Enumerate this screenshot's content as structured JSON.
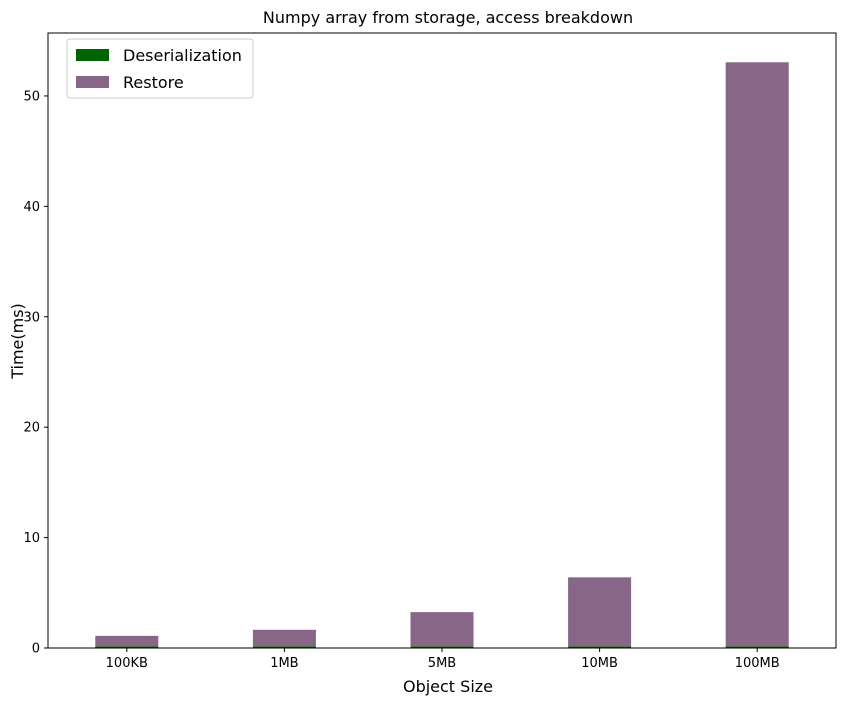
{
  "chart_data": {
    "type": "bar",
    "stacked": true,
    "title": "Numpy array from storage, access breakdown",
    "xlabel": "Object Size",
    "ylabel": "Time(ms)",
    "categories": [
      "100KB",
      "1MB",
      "5MB",
      "10MB",
      "100MB"
    ],
    "series": [
      {
        "name": "Deserialization",
        "color": "#006400",
        "values": [
          0.15,
          0.15,
          0.15,
          0.15,
          0.15
        ]
      },
      {
        "name": "Restore",
        "color": "#886688",
        "values": [
          0.95,
          1.5,
          3.1,
          6.25,
          52.9
        ]
      }
    ],
    "ylim": [
      0,
      55.7
    ],
    "yticks": [
      0,
      10,
      20,
      30,
      40,
      50
    ],
    "grid": false,
    "legend_position": "top-left"
  }
}
